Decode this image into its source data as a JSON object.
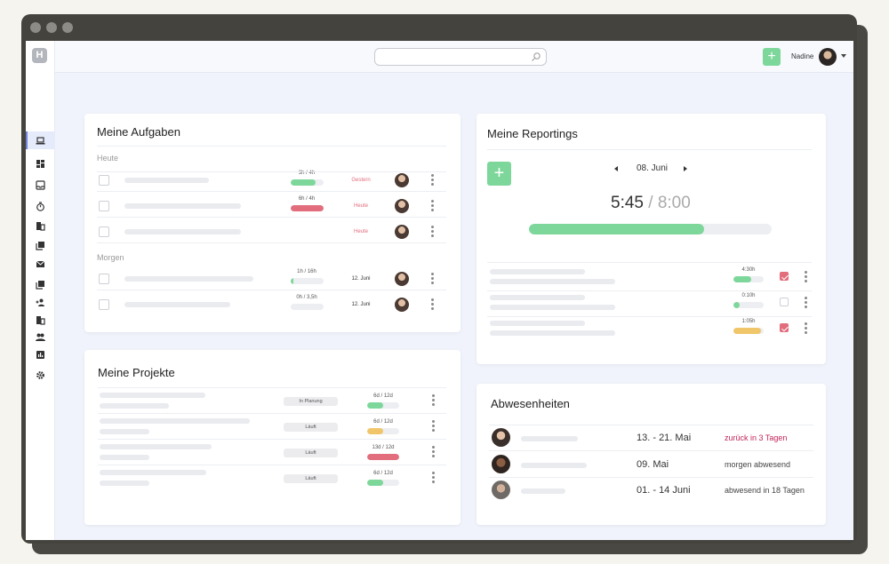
{
  "topbar": {
    "logo_text": "H",
    "search_placeholder": "",
    "add_label": "+",
    "username": "Nadine"
  },
  "sidebar": {
    "items": [
      {
        "icon": "laptop-icon",
        "active": true
      },
      {
        "icon": "dashboard-icon"
      },
      {
        "icon": "inbox-icon"
      },
      {
        "icon": "timer-icon"
      },
      {
        "icon": "building-icon"
      },
      {
        "icon": "library-icon"
      },
      {
        "icon": "mail-check-icon"
      },
      {
        "icon": "library-icon"
      },
      {
        "icon": "person-add-icon"
      },
      {
        "icon": "building-icon"
      },
      {
        "icon": "people-icon"
      },
      {
        "icon": "chart-icon"
      },
      {
        "icon": "gear-icon"
      }
    ]
  },
  "tasks": {
    "title": "Meine Aufgaben",
    "sections": [
      {
        "label": "Heute",
        "rows": [
          {
            "hours": "3h / 4h",
            "progress": 0.75,
            "color": "#7dd79a",
            "date": "Gestern",
            "date_color": "#e26d7d"
          },
          {
            "hours": "6h / 4h",
            "progress": 1.0,
            "color": "#e26d7d",
            "date": "Heute",
            "date_color": "#e26d7d"
          },
          {
            "hours": "",
            "progress": null,
            "color": "",
            "date": "Heute",
            "date_color": "#e26d7d"
          }
        ]
      },
      {
        "label": "Morgen",
        "rows": [
          {
            "hours": "1h / 16h",
            "progress": 0.07,
            "color": "#7dd79a",
            "date": "12. Juni",
            "date_color": "#333333"
          },
          {
            "hours": "0h / 3,5h",
            "progress": 0,
            "color": "#7dd79a",
            "date": "12. Juni",
            "date_color": "#333333"
          }
        ]
      }
    ]
  },
  "projects": {
    "title": "Meine Projekte",
    "rows": [
      {
        "status": "In Planung",
        "days": "6d / 12d",
        "progress": 0.5,
        "color": "#7dd79a"
      },
      {
        "status": "Läuft",
        "days": "6d / 12d",
        "progress": 0.5,
        "color": "#f1c66a"
      },
      {
        "status": "Läuft",
        "days": "13d / 12d",
        "progress": 1.0,
        "color": "#e26d7d"
      },
      {
        "status": "Läuft",
        "days": "6d / 12d",
        "progress": 0.5,
        "color": "#7dd79a"
      }
    ]
  },
  "reportings": {
    "title": "Meine Reportings",
    "add_label": "+",
    "date": "08. Juni",
    "time_logged": "5:45",
    "time_separator": "/",
    "time_target": "8:00",
    "progress": 0.72,
    "rows": [
      {
        "time": "4:30h",
        "progress": 0.6,
        "color": "#7dd79a",
        "checked": true
      },
      {
        "time": "0:10h",
        "progress": 0.2,
        "color": "#7dd79a",
        "checked": false
      },
      {
        "time": "1:05h",
        "progress": 0.9,
        "color": "#f1c66a",
        "checked": true
      }
    ]
  },
  "absences": {
    "title": "Abwesenheiten",
    "rows": [
      {
        "dates": "13. - 21. Mai",
        "status": "zurück in 3 Tagen",
        "status_color": "#c2255c"
      },
      {
        "dates": "09. Mai",
        "status": "morgen abwesend",
        "status_color": "#444444"
      },
      {
        "dates": "01. - 14 Juni",
        "status": "abwesend in 18 Tagen",
        "status_color": "#444444"
      }
    ]
  }
}
